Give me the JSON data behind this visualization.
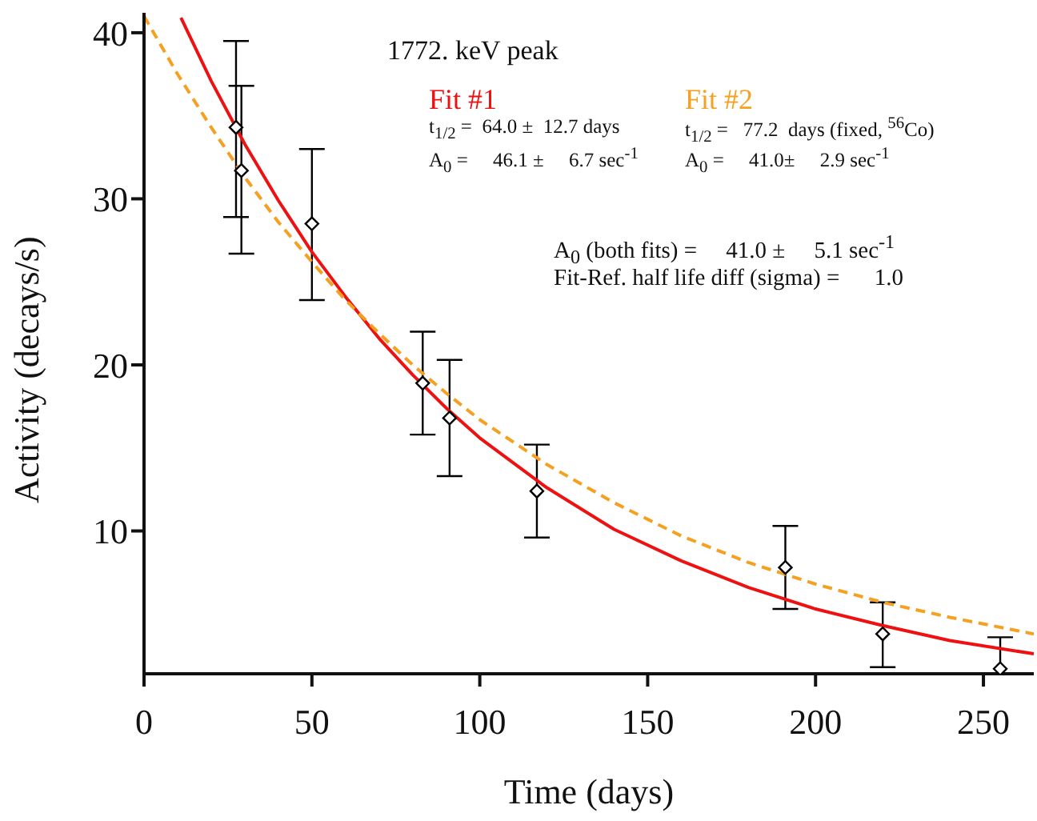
{
  "chart_data": {
    "type": "scatter",
    "xlabel": "Time (days)",
    "ylabel": "Activity (decays/s)",
    "xlim": [
      0,
      265
    ],
    "xticks": [
      0,
      50,
      100,
      150,
      200,
      250
    ],
    "ylim": [
      1.4,
      41.2
    ],
    "yticks": [
      10,
      20,
      30,
      40
    ],
    "legend": "top right",
    "annotations": [
      "1772. keV peak",
      "t$_{1/2}$ =  64.0 ±  12.7 days",
      "A$_{0}$ =     46.1 ±     6.7 sec$^{-1}$",
      "t$_{1/2}$ =   77.2  days (fixed, $^{56}$Co)",
      "A$_{0}$ =     41.0±     2.9 sec$^{-1}$",
      "A$_{0}$ (both fits) =     41.0 ±     5.1 sec$^{-1}$",
      "Fit-Ref. half life diff (sigma) =      1.0"
    ],
    "series": [
      {
        "color": "#000000",
        "marker": "diamond",
        "x": [
          27.4,
          29,
          50,
          83,
          91,
          117,
          191,
          220,
          255
        ],
        "values": [
          34.3,
          31.7,
          28.5,
          18.9,
          16.8,
          12.4,
          7.8,
          3.8,
          1.7
        ],
        "errors": [
          [
            28.9,
            39.5
          ],
          [
            26.7,
            36.8
          ],
          [
            23.9,
            33.0
          ],
          [
            15.8,
            22.0
          ],
          [
            13.3,
            20.3
          ],
          [
            9.6,
            15.2
          ],
          [
            5.3,
            10.3
          ],
          [
            1.8,
            5.7
          ],
          [
            1.4,
            3.6
          ]
        ]
      },
      {
        "type": "line",
        "name": "Fit #1",
        "color": "#ee1111",
        "line_style": "solid",
        "x": [
          11,
          20,
          30,
          40,
          50,
          60,
          70,
          80,
          90,
          100,
          120,
          140,
          160,
          180,
          200,
          220,
          240,
          265
        ],
        "values": [
          40.9,
          37.1,
          33.3,
          29.9,
          26.8,
          24.1,
          21.6,
          19.4,
          17.4,
          15.6,
          12.6,
          10.1,
          8.2,
          6.6,
          5.3,
          4.3,
          3.4,
          2.6
        ]
      },
      {
        "type": "line",
        "name": "Fit #2",
        "color": "#f5a020",
        "line_style": "dashed",
        "x": [
          0,
          10,
          20,
          30,
          40,
          50,
          60,
          70,
          80,
          90,
          100,
          120,
          140,
          160,
          180,
          200,
          220,
          240,
          265
        ],
        "values": [
          41.0,
          37.5,
          34.3,
          31.3,
          28.6,
          26.2,
          23.9,
          21.9,
          20.0,
          18.3,
          16.7,
          14.0,
          11.7,
          9.7,
          8.1,
          6.8,
          5.7,
          4.8,
          3.8
        ]
      }
    ]
  }
}
